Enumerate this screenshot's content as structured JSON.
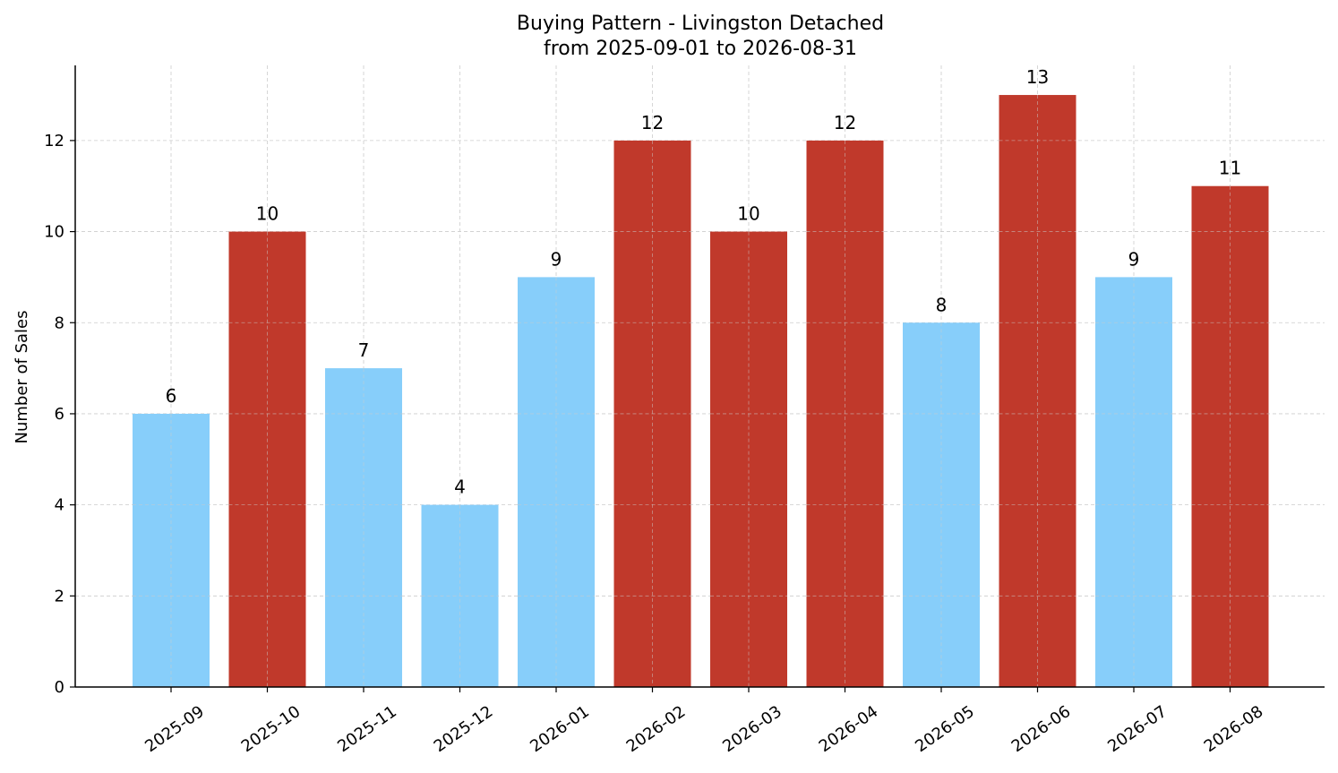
{
  "chart_data": {
    "type": "bar",
    "title": "Buying Pattern - Livingston Detached",
    "subtitle": "from 2025-09-01 to 2026-08-31",
    "xlabel": "",
    "ylabel": "Number of Sales",
    "categories": [
      "2025-09",
      "2025-10",
      "2025-11",
      "2025-12",
      "2026-01",
      "2026-02",
      "2026-03",
      "2026-04",
      "2026-05",
      "2026-06",
      "2026-07",
      "2026-08"
    ],
    "values": [
      6,
      10,
      7,
      4,
      9,
      12,
      10,
      12,
      8,
      13,
      9,
      11
    ],
    "value_labels": [
      "6",
      "10",
      "7",
      "4",
      "9",
      "12",
      "10",
      "12",
      "8",
      "13",
      "9",
      "11"
    ],
    "bar_colors": [
      "#87CEFA",
      "#C0392B",
      "#87CEFA",
      "#87CEFA",
      "#87CEFA",
      "#C0392B",
      "#C0392B",
      "#C0392B",
      "#87CEFA",
      "#C0392B",
      "#87CEFA",
      "#C0392B"
    ],
    "yticks": [
      0,
      2,
      4,
      6,
      8,
      10,
      12
    ],
    "ytick_labels": [
      "0",
      "2",
      "4",
      "6",
      "8",
      "10",
      "12"
    ],
    "ylim": [
      0,
      13.65
    ],
    "grid": true,
    "legend": false
  }
}
